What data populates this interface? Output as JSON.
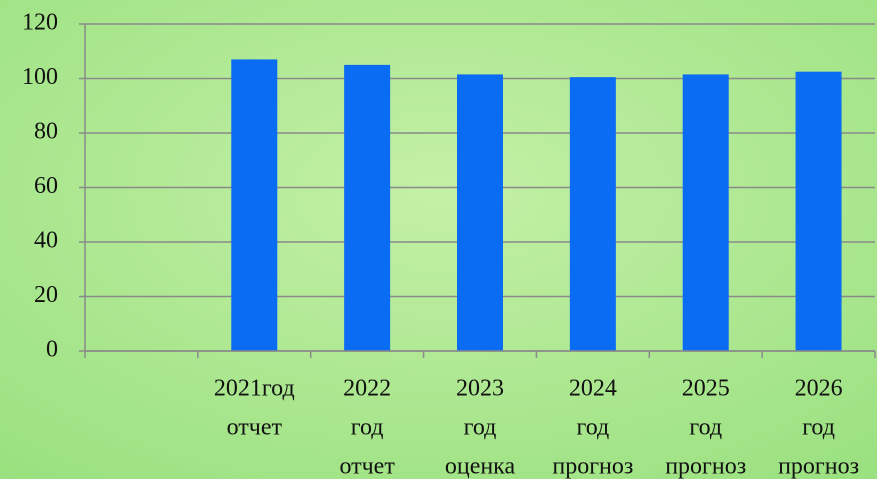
{
  "chart_data": {
    "type": "bar",
    "categories": [
      null,
      [
        "2021год",
        "отчет"
      ],
      [
        "2022",
        "год",
        "отчет"
      ],
      [
        "2023",
        "год",
        "оценка"
      ],
      [
        "2024",
        "год",
        "прогноз"
      ],
      [
        "2025",
        "год",
        "прогноз"
      ],
      [
        "2026",
        "год",
        "прогноз"
      ]
    ],
    "values": [
      null,
      107,
      105,
      101.5,
      100.5,
      101.5,
      102.5
    ],
    "color": "#0a6cf2",
    "ylim": [
      0,
      120
    ],
    "yticks": [
      0,
      20,
      40,
      60,
      80,
      100,
      120
    ],
    "grid": true
  }
}
